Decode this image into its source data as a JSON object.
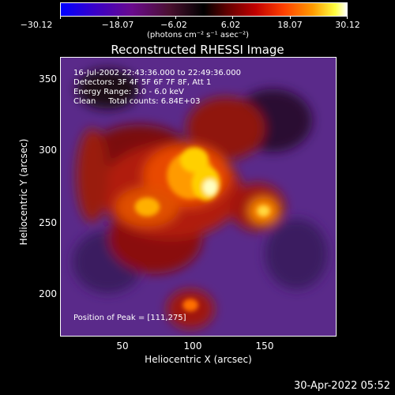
{
  "colorbar": {
    "ticks": [
      "−30.12",
      "−18.07",
      "−6.02",
      "6.02",
      "18.07",
      "30.12"
    ],
    "unit": "(photons cm⁻² s⁻¹ asec⁻²)"
  },
  "title": "Reconstructed RHESSI Image",
  "annotations": {
    "time_range": "16-Jul-2002 22:43:36.000 to 22:49:36.000",
    "detectors": "Detectors: 3F 4F 5F 6F 7F 8F, Att 1",
    "energy": "Energy Range: 3.0 - 6.0 keV",
    "clean": "Clean     Total counts: 6.84E+03",
    "peak": "Position of Peak = [111,275]"
  },
  "axes": {
    "xlabel": "Heliocentric X (arcsec)",
    "ylabel": "Heliocentric Y (arcsec)",
    "xticks": [
      "50",
      "100",
      "150"
    ],
    "yticks": [
      "350",
      "300",
      "250",
      "200"
    ]
  },
  "timestamp": "30-Apr-2022 05:52"
}
